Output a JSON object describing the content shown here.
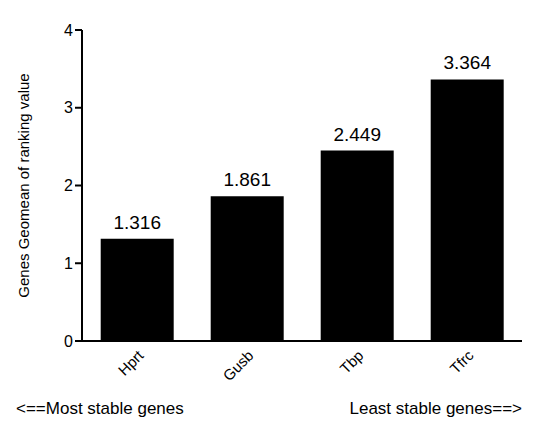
{
  "chart_data": {
    "type": "bar",
    "categories": [
      "Hprt",
      "Gusb",
      "Tbp",
      "Tfrc"
    ],
    "values": [
      1.316,
      1.861,
      2.449,
      3.364
    ],
    "color": "#000000",
    "ylabel": "Genes Geomean of ranking value",
    "ylim": [
      0,
      4
    ],
    "yticks": [
      0,
      1,
      2,
      3,
      4
    ],
    "grid": false,
    "data_labels": true,
    "annotations": [
      "<==Most stable genes",
      "Least stable genes==>"
    ]
  }
}
